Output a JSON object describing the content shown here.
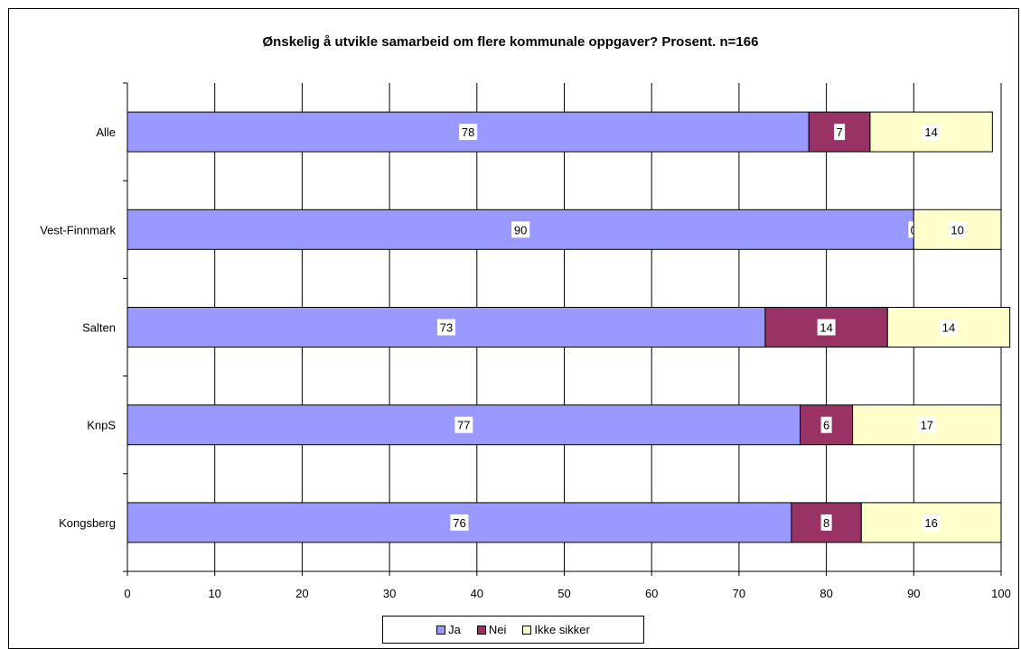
{
  "chart_data": {
    "type": "bar",
    "orientation": "horizontal",
    "stacked": true,
    "title": "Ønskelig å utvikle samarbeid om flere kommunale oppgaver? Prosent. n=166",
    "categories": [
      "Alle",
      "Vest-Finnmark",
      "Salten",
      "KnpS",
      "Kongsberg"
    ],
    "series": [
      {
        "name": "Ja",
        "color": "#9999ff",
        "values": [
          78,
          90,
          73,
          77,
          76
        ]
      },
      {
        "name": "Nei",
        "color": "#993366",
        "values": [
          7,
          0,
          14,
          6,
          8
        ]
      },
      {
        "name": "Ikke sikker",
        "color": "#ffffcc",
        "values": [
          14,
          10,
          14,
          17,
          16
        ]
      }
    ],
    "xlim": [
      0,
      100
    ],
    "x_ticks": [
      0,
      10,
      20,
      30,
      40,
      50,
      60,
      70,
      80,
      90,
      100
    ],
    "grid": true,
    "legend_position": "bottom",
    "data_labels": true
  }
}
